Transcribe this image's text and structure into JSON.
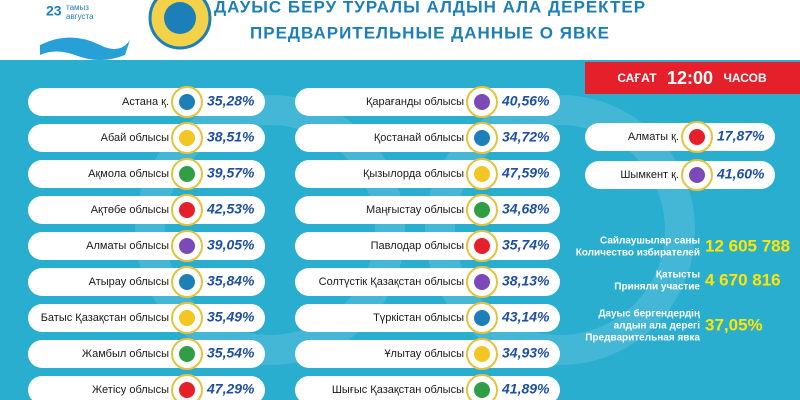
{
  "header": {
    "title_kz": "ДАУЫС БЕРУ ТУРАЛЫ АЛДЫН АЛА ДЕРЕКТЕР",
    "title_ru": "ПРЕДВАРИТЕЛЬНЫЕ ДАННЫЕ О ЯВКЕ",
    "logo": {
      "day": "23",
      "line1": "тамыз",
      "line2": "августа"
    }
  },
  "time": {
    "kz": "САҒАТ",
    "value": "12:00",
    "ru": "ЧАСОВ"
  },
  "columns": [
    [
      {
        "name": "Астана қ.",
        "percent": "35,28%"
      },
      {
        "name": "Абай облысы",
        "percent": "38,51%"
      },
      {
        "name": "Ақмола облысы",
        "percent": "39,57%"
      },
      {
        "name": "Ақтөбе облысы",
        "percent": "42,53%"
      },
      {
        "name": "Алматы облысы",
        "percent": "39,05%"
      },
      {
        "name": "Атырау облысы",
        "percent": "35,84%"
      },
      {
        "name": "Батыс Қазақстан облысы",
        "percent": "35,49%"
      },
      {
        "name": "Жамбыл облысы",
        "percent": "35,54%"
      },
      {
        "name": "Жетісу облысы",
        "percent": "47,29%"
      }
    ],
    [
      {
        "name": "Қарағанды облысы",
        "percent": "40,56%"
      },
      {
        "name": "Қостанай облысы",
        "percent": "34,72%"
      },
      {
        "name": "Қызылорда облысы",
        "percent": "47,59%"
      },
      {
        "name": "Маңғыстау облысы",
        "percent": "34,68%"
      },
      {
        "name": "Павлодар облысы",
        "percent": "35,74%"
      },
      {
        "name": "Солтүстік Қазақстан облысы",
        "percent": "38,13%"
      },
      {
        "name": "Түркістан облысы",
        "percent": "43,14%"
      },
      {
        "name": "Ұлытау облысы",
        "percent": "34,93%"
      },
      {
        "name": "Шығыс Қазақстан облысы",
        "percent": "41,89%"
      }
    ],
    [
      {
        "name": "Алматы қ.",
        "percent": "17,87%"
      },
      {
        "name": "Шымкент қ.",
        "percent": "41,60%"
      }
    ]
  ],
  "stats": [
    {
      "labels": [
        "Сайлаушылар саны",
        "Количество избирателей"
      ],
      "value": "12 605 788"
    },
    {
      "labels": [
        "Қатысты",
        "Приняли участие"
      ],
      "value": "4 670 816"
    },
    {
      "labels": [
        "Дауыс бергендердің",
        "алдын ала дерегі",
        "Предварительная явка"
      ],
      "value": "37,05%"
    }
  ]
}
